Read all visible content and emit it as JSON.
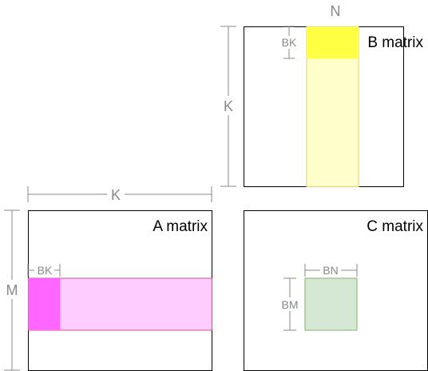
{
  "b_matrix": {
    "title": "B matrix",
    "n_label": "N",
    "k_label": "K",
    "bk_label": "BK",
    "colors": {
      "tile": "#ffff44",
      "strip": "#ffffcc",
      "strip_border": "#e8c870"
    }
  },
  "a_matrix": {
    "title": "A matrix",
    "k_label": "K",
    "m_label": "M",
    "bk_label": "BK",
    "colors": {
      "tile": "#ff66ff",
      "strip": "#ffccff",
      "strip_border": "#cc5577"
    }
  },
  "c_matrix": {
    "title": "C matrix",
    "bn_label": "BN",
    "bm_label": "BM",
    "colors": {
      "tile": "#d5e8d4",
      "tile_border": "#82b366"
    }
  }
}
